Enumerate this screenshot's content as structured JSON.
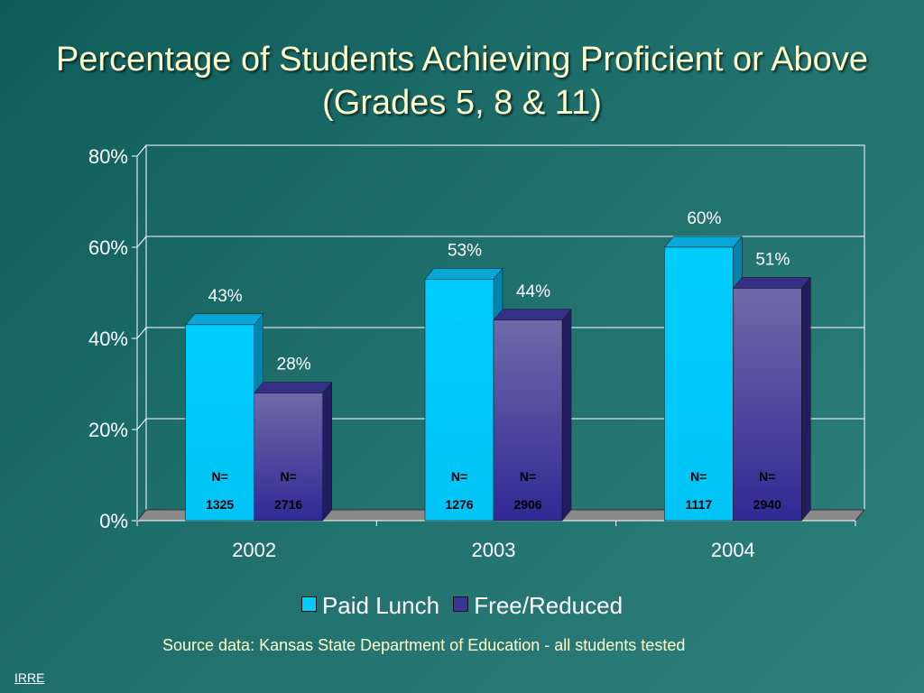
{
  "slide": {
    "title_line1": "Percentage of Students Achieving Proficient or Above",
    "title_line2": "(Grades 5, 8 & 11)",
    "source_note": "Source data: Kansas State Department of Education - all students tested",
    "footer": "IRRE"
  },
  "chart_data": {
    "type": "bar",
    "title": "Percentage of Students Achieving Proficient or Above (Grades 5, 8 & 11)",
    "categories": [
      "2002",
      "2003",
      "2004"
    ],
    "series": [
      {
        "name": "Paid Lunch",
        "values": [
          43,
          53,
          60
        ],
        "value_labels": [
          "43%",
          "53%",
          "60%"
        ],
        "n_prefix": [
          "N=",
          "N=",
          "N="
        ],
        "n_values": [
          "1325",
          "1276",
          "1117"
        ],
        "color": "#00ccff"
      },
      {
        "name": "Free/Reduced",
        "values": [
          28,
          44,
          51
        ],
        "value_labels": [
          "28%",
          "44%",
          "51%"
        ],
        "n_prefix": [
          "N=",
          "N=",
          "N="
        ],
        "n_values": [
          "2716",
          "2906",
          "2940"
        ],
        "color": "#3a3496"
      }
    ],
    "y_ticks": [
      0,
      20,
      40,
      60,
      80
    ],
    "y_tick_labels": [
      "0%",
      "20%",
      "40%",
      "60%",
      "80%"
    ],
    "ylim": [
      0,
      80
    ],
    "grid": true,
    "legend_position": "bottom",
    "style": "3d-bar"
  }
}
